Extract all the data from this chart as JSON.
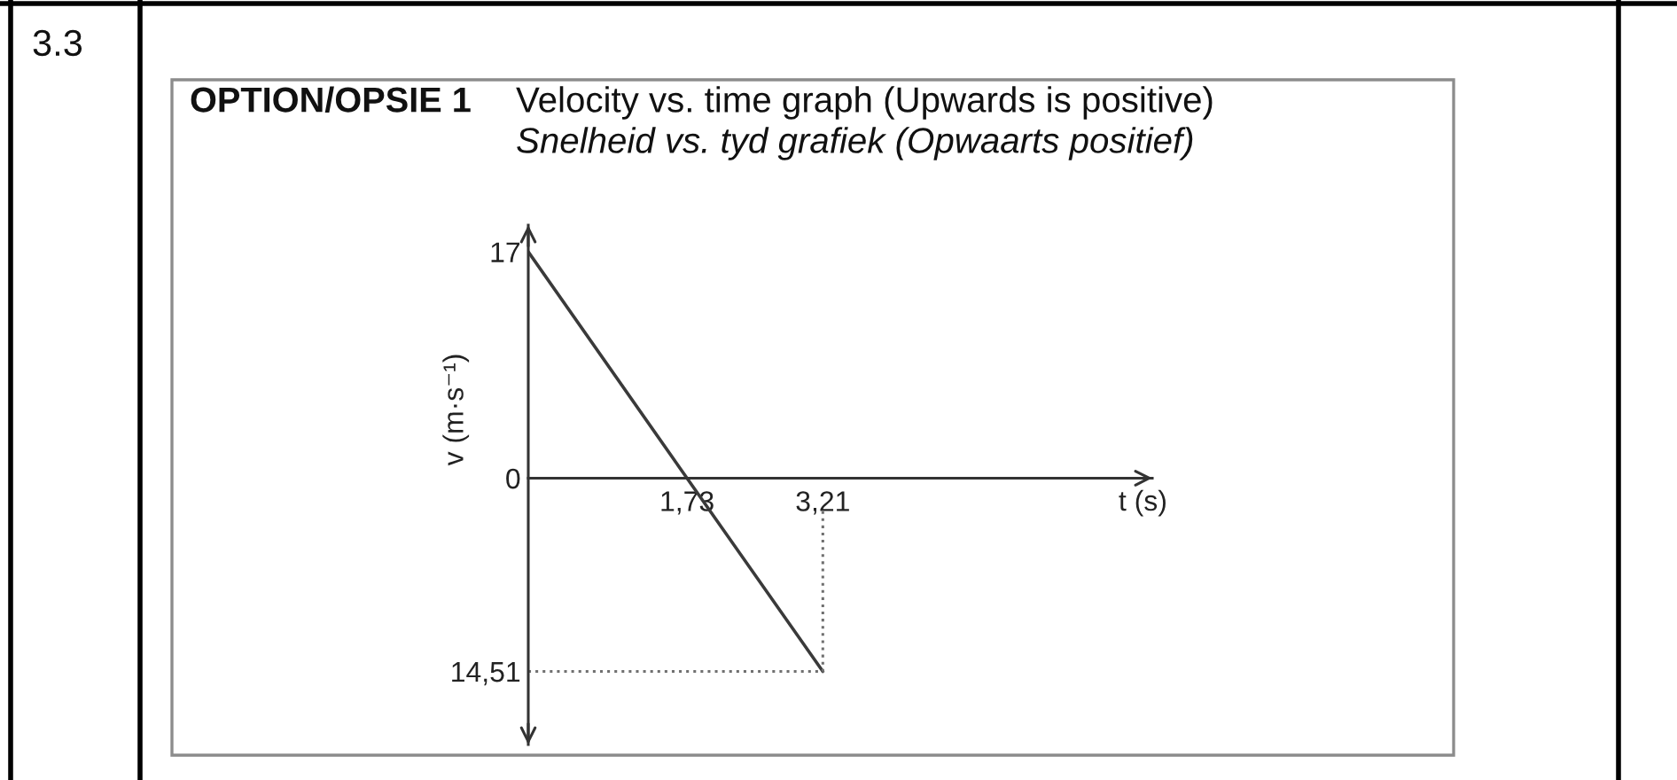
{
  "chart_data": {
    "type": "line",
    "title": "Velocity vs. time graph (Upwards is positive)",
    "subtitle": "Snelheid vs. tyd grafiek (Opwaarts positief)",
    "annotations": [
      "3.3",
      "OPTION/OPSIE 1"
    ],
    "xlabel": "t (s)",
    "ylabel": "v (m·s⁻¹)",
    "series": [
      {
        "color": "#3a3a3a",
        "line_style": "solid",
        "x": [
          0,
          1.73,
          3.21
        ],
        "values": [
          17,
          0,
          -14.51
        ]
      },
      {
        "color": "#707070",
        "line_style": "dotted",
        "x": [
          0,
          3.21,
          3.21
        ],
        "values": [
          -14.51,
          -14.51,
          -2.5
        ]
      }
    ],
    "xlim": [
      0,
      6.8
    ],
    "ylim": [
      -20,
      19
    ],
    "xticks": [
      {
        "value": 1.73,
        "label": "1,73"
      },
      {
        "value": 3.21,
        "label": "3,21"
      }
    ],
    "yticks": [
      {
        "value": -14.51,
        "label": "14,51"
      },
      0,
      17
    ]
  }
}
